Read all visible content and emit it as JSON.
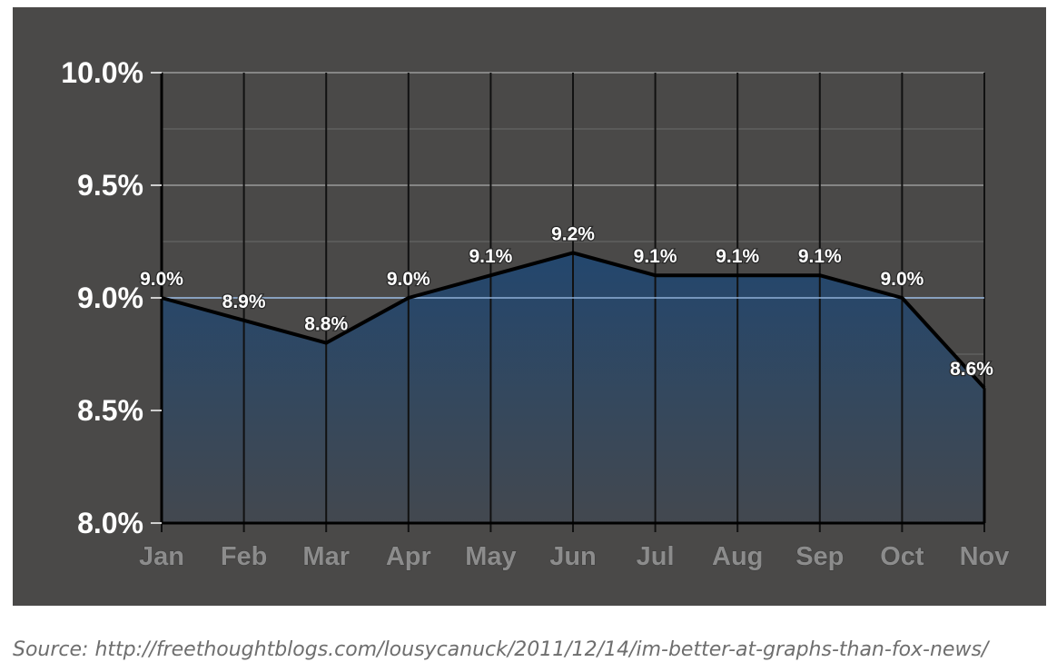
{
  "chart_data": {
    "type": "area",
    "categories": [
      "Jan",
      "Feb",
      "Mar",
      "Apr",
      "May",
      "Jun",
      "Jul",
      "Aug",
      "Sep",
      "Oct",
      "Nov"
    ],
    "series": [
      {
        "values": [
          9.0,
          8.9,
          8.8,
          9.0,
          9.1,
          9.2,
          9.1,
          9.1,
          9.1,
          9.0,
          8.6
        ]
      }
    ],
    "data_labels": [
      "9.0%",
      "8.9%",
      "8.8%",
      "9.0%",
      "9.1%",
      "9.2%",
      "9.1%",
      "9.1%",
      "9.1%",
      "9.0%",
      "8.6%"
    ],
    "yticks": [
      {
        "value": 10.0,
        "label": "10.0%"
      },
      {
        "value": 9.5,
        "label": "9.5%"
      },
      {
        "value": 9.0,
        "label": "9.0%"
      },
      {
        "value": 8.5,
        "label": "8.5%"
      },
      {
        "value": 8.0,
        "label": "8.0%"
      }
    ],
    "ylim": [
      8.0,
      10.0
    ],
    "grid": true,
    "colors": {
      "background": "#4a4948",
      "line": "#000000",
      "fill_top": "#23476e",
      "fill_bottom": "#43484f",
      "grid": "#9a9a9a",
      "baseline": "#8fb0d8"
    }
  },
  "source_text": "Source: http://freethoughtblogs.com/lousycanuck/2011/12/14/im-better-at-graphs-than-fox-news/"
}
